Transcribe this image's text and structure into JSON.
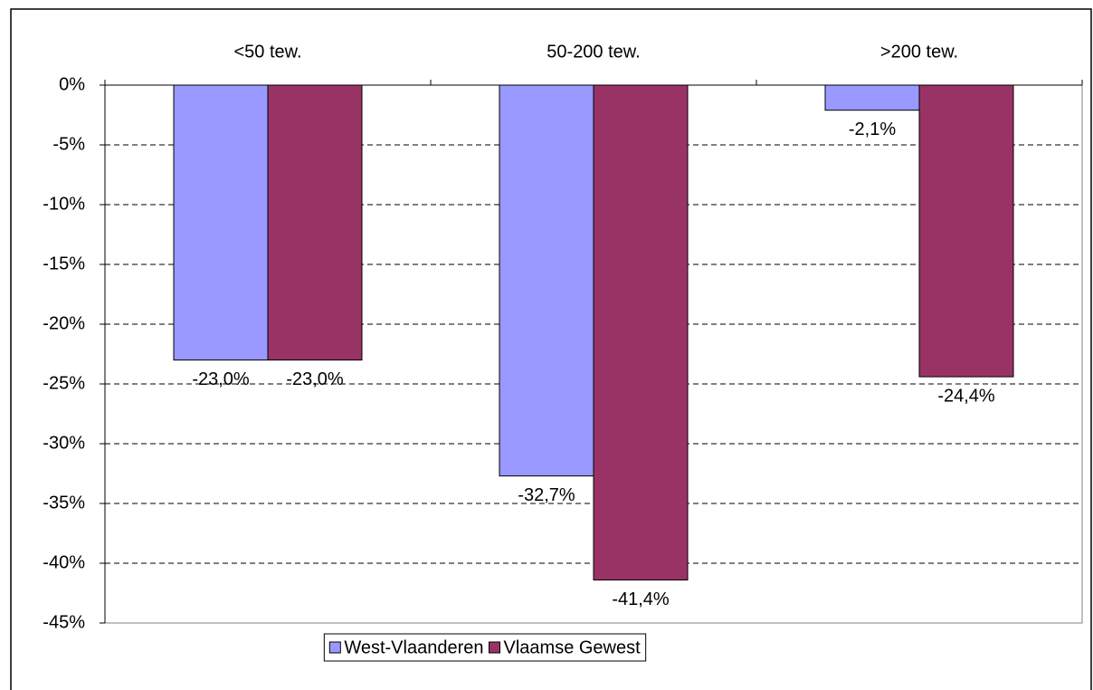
{
  "chart_data": {
    "type": "bar",
    "categories": [
      "<50 tew.",
      "50-200 tew.",
      ">200 tew."
    ],
    "series": [
      {
        "name": "West-Vlaanderen",
        "color": "#9999ff",
        "values": [
          -23.0,
          -32.7,
          -2.1
        ],
        "value_labels": [
          "-23,0%",
          "-32,7%",
          "-2,1%"
        ]
      },
      {
        "name": "Vlaamse Gewest",
        "color": "#993366",
        "values": [
          -23.0,
          -41.4,
          -24.4
        ],
        "value_labels": [
          "-23,0%",
          "-41,4%",
          "-24,4%"
        ]
      }
    ],
    "ylim": [
      -45,
      0
    ],
    "yticks": [
      {
        "value": 0,
        "label": "0%"
      },
      {
        "value": -5,
        "label": "-5%"
      },
      {
        "value": -10,
        "label": "-10%"
      },
      {
        "value": -15,
        "label": "-15%"
      },
      {
        "value": -20,
        "label": "-20%"
      },
      {
        "value": -25,
        "label": "-25%"
      },
      {
        "value": -30,
        "label": "-30%"
      },
      {
        "value": -35,
        "label": "-35%"
      },
      {
        "value": -40,
        "label": "-40%"
      },
      {
        "value": -45,
        "label": "-45%"
      }
    ],
    "grid": true,
    "legend": "bottom"
  }
}
